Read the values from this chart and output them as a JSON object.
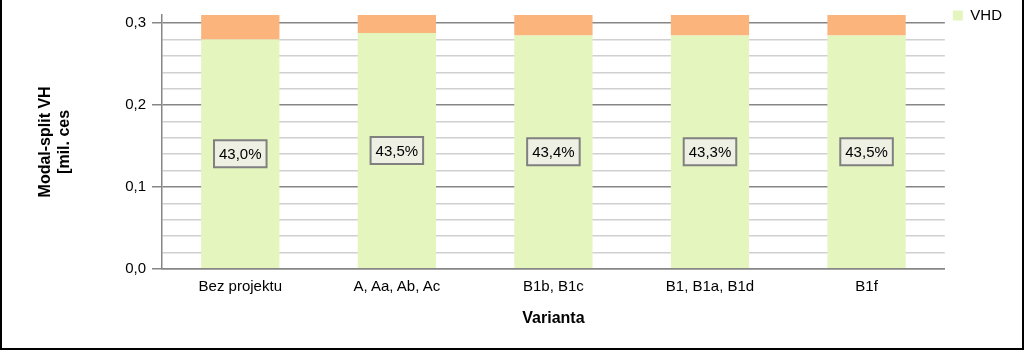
{
  "chart_data": {
    "type": "bar",
    "stacked": true,
    "xlabel": "Varianta",
    "ylabel": "Modal-split VH\n[mil. ces",
    "categories": [
      "Bez projektu",
      "A, Aa, Ab, Ac",
      "B1b, B1c",
      "B1, B1a, B1d",
      "B1f"
    ],
    "series": [
      {
        "name": "VHD",
        "color": "#e4f5bd",
        "values": [
          0.28,
          0.288,
          0.285,
          0.285,
          0.285
        ]
      },
      {
        "color": "#fbb47c",
        "values": [
          0.03,
          0.022,
          0.025,
          0.025,
          0.025
        ]
      }
    ],
    "annotations": [
      "43,0%",
      "43,5%",
      "43,4%",
      "43,3%",
      "43,5%"
    ],
    "ylim": [
      0,
      0.31
    ],
    "yticks": [
      {
        "value": 0,
        "label": "0,0"
      },
      {
        "value": 0.02,
        "label": null
      },
      {
        "value": 0.04,
        "label": null
      },
      {
        "value": 0.06,
        "label": null
      },
      {
        "value": 0.08,
        "label": null
      },
      {
        "value": 0.1,
        "label": "0,1"
      },
      {
        "value": 0.12,
        "label": null
      },
      {
        "value": 0.14,
        "label": null
      },
      {
        "value": 0.16,
        "label": null
      },
      {
        "value": 0.18,
        "label": null
      },
      {
        "value": 0.2,
        "label": "0,2"
      },
      {
        "value": 0.22,
        "label": null
      },
      {
        "value": 0.24,
        "label": null
      },
      {
        "value": 0.26,
        "label": null
      },
      {
        "value": 0.28,
        "label": null
      },
      {
        "value": 0.3,
        "label": "0,3"
      }
    ],
    "grid": "y",
    "legend": "top right"
  }
}
